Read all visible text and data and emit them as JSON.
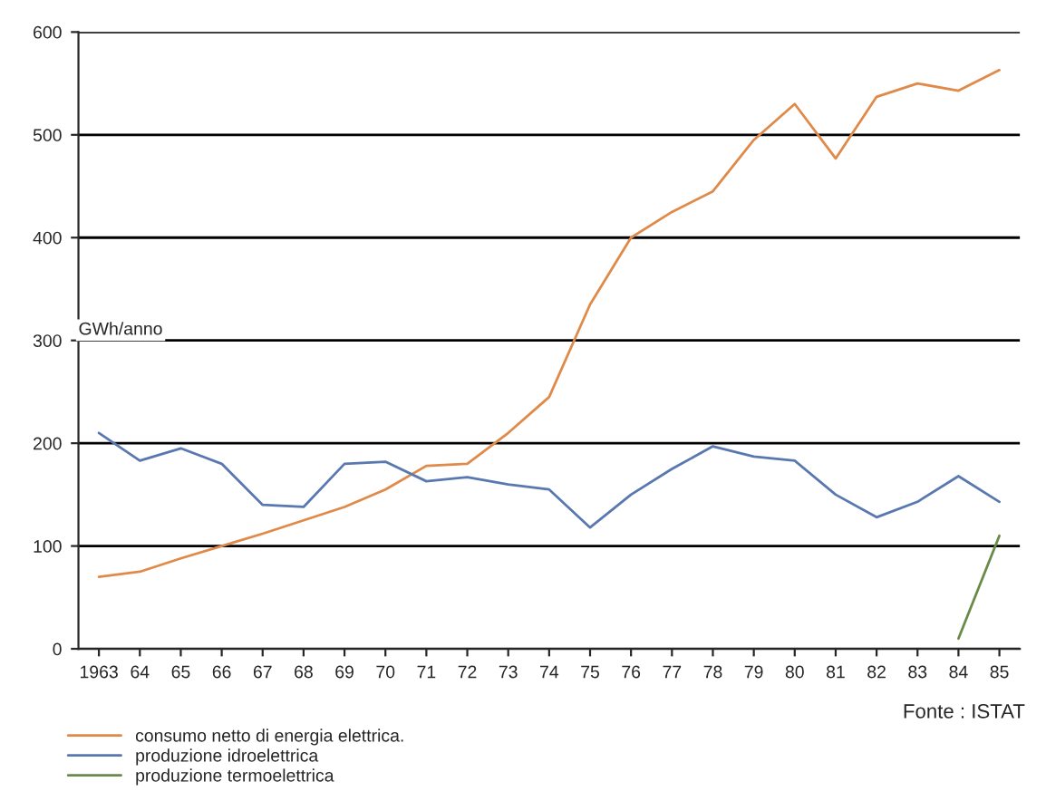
{
  "chart_data": {
    "type": "line",
    "ylabel": "GWh/anno",
    "categories": [
      "1963",
      "64",
      "65",
      "66",
      "67",
      "68",
      "69",
      "70",
      "71",
      "72",
      "73",
      "74",
      "75",
      "76",
      "77",
      "78",
      "79",
      "80",
      "81",
      "82",
      "83",
      "84",
      "85"
    ],
    "series": [
      {
        "name": "consumo netto di energia elettrica.",
        "color": "#e08a4a",
        "values": [
          70,
          75,
          88,
          100,
          112,
          125,
          138,
          155,
          178,
          180,
          210,
          245,
          335,
          400,
          425,
          445,
          495,
          530,
          477,
          537,
          550,
          543,
          563
        ]
      },
      {
        "name": "produzione idroelettrica",
        "color": "#5a78b0",
        "values": [
          210,
          183,
          195,
          180,
          140,
          138,
          180,
          182,
          163,
          167,
          160,
          155,
          118,
          150,
          175,
          197,
          187,
          183,
          150,
          128,
          143,
          168,
          143
        ]
      },
      {
        "name": "produzione termoelettrica",
        "color": "#6a8a4a",
        "values": [
          null,
          null,
          null,
          null,
          null,
          null,
          null,
          null,
          null,
          null,
          null,
          null,
          null,
          null,
          null,
          null,
          null,
          null,
          null,
          null,
          null,
          10,
          110
        ]
      }
    ],
    "ylim": [
      0,
      600
    ],
    "yticks": [
      0,
      100,
      200,
      300,
      400,
      500,
      600
    ],
    "grid": "y",
    "legend": "bottom left",
    "marker": "none",
    "line_style": "solid",
    "annotations": [
      "Fonte : ISTAT"
    ]
  }
}
